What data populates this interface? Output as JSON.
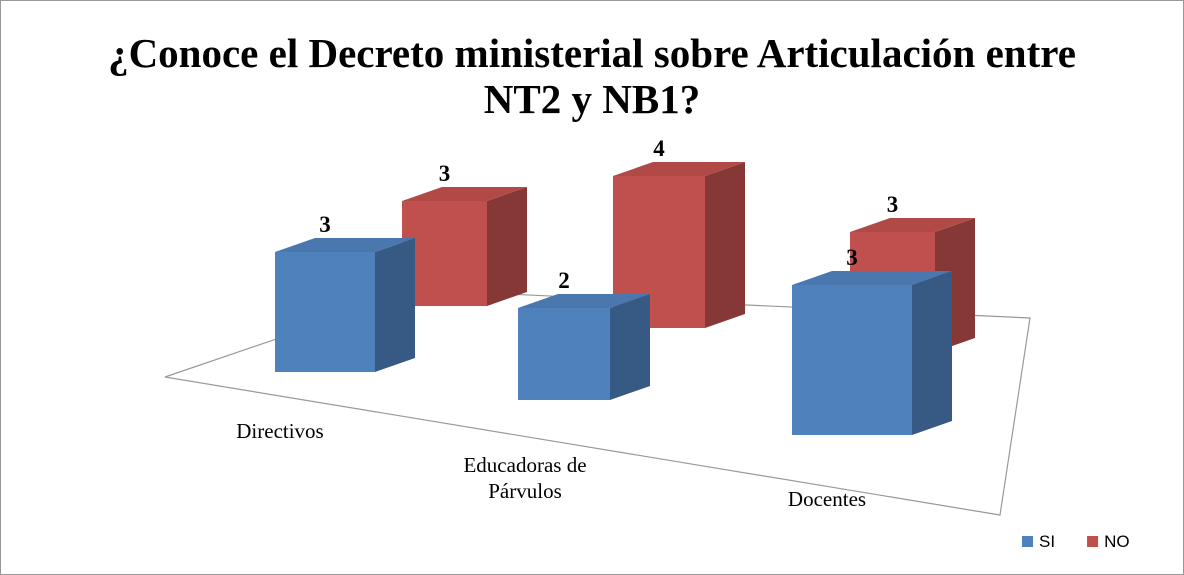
{
  "chart_data": {
    "type": "bar3d",
    "title": "¿Conoce el Decreto ministerial sobre Articulación entre NT2 y NB1?",
    "categories": [
      "Directivos",
      "Educadoras de Párvulos",
      "Docentes"
    ],
    "series": [
      {
        "name": "SI",
        "color": "#4f81bd",
        "values": [
          3,
          2,
          3
        ]
      },
      {
        "name": "NO",
        "color": "#c0504d",
        "values": [
          3,
          4,
          3
        ]
      }
    ],
    "legend": "bottom-right"
  }
}
